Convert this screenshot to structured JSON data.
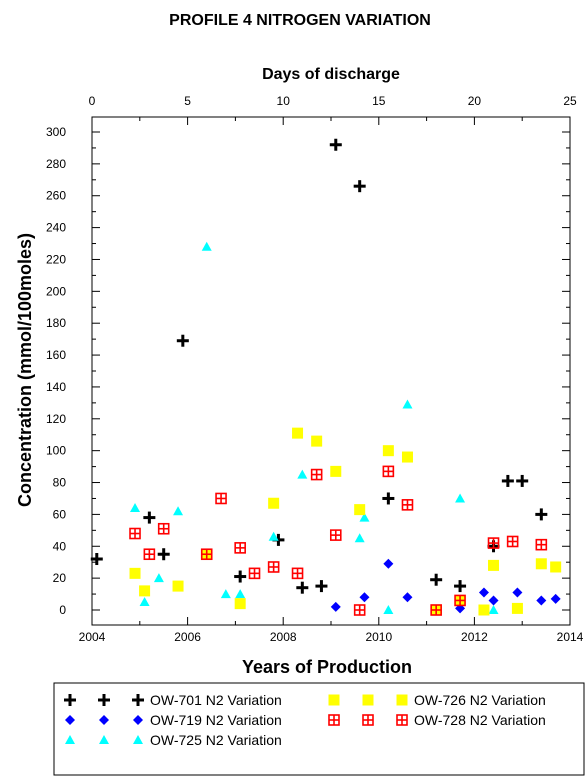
{
  "chart_data": {
    "type": "scatter",
    "title": "PROFILE 4 NITROGEN VARIATION",
    "xlabel": "Years of Production",
    "x2label": "Days of discharge",
    "ylabel": "Concentration (mmol/100moles)",
    "xlim": [
      2004,
      2014
    ],
    "x2lim": [
      0,
      25
    ],
    "ylim": [
      0,
      300
    ],
    "xticks": [
      "2004",
      "2006",
      "2008",
      "2010",
      "2012",
      "2014"
    ],
    "x2ticks": [
      "0",
      "5",
      "10",
      "15",
      "20",
      "25"
    ],
    "yticks": [
      "0",
      "20",
      "40",
      "60",
      "80",
      "100",
      "120",
      "140",
      "160",
      "180",
      "200",
      "220",
      "240",
      "260",
      "280",
      "300"
    ],
    "grid": false,
    "legend_position": "bottom",
    "series": [
      {
        "name": "OW-701 N2 Variation",
        "marker": "cross",
        "color": "#000000",
        "x": [
          2004.1,
          2005.2,
          2005.5,
          2005.9,
          2007.1,
          2007.9,
          2008.4,
          2008.8,
          2009.1,
          2009.6,
          2010.2,
          2011.2,
          2011.7,
          2012.4,
          2012.7,
          2013.0,
          2013.4
        ],
        "y": [
          32,
          58,
          35,
          169,
          21,
          44,
          14,
          15,
          292,
          266,
          70,
          19,
          15,
          40,
          81,
          81,
          60
        ]
      },
      {
        "name": "OW-719 N2 Variation",
        "marker": "diamond",
        "color": "#0000ff",
        "x": [
          2009.1,
          2009.7,
          2010.2,
          2010.6,
          2011.7,
          2012.2,
          2012.4,
          2012.9,
          2013.4,
          2013.7
        ],
        "y": [
          2,
          8,
          29,
          8,
          1,
          11,
          6,
          11,
          6,
          7
        ]
      },
      {
        "name": "OW-725 N2 Variation",
        "marker": "triangle",
        "color": "#00ffff",
        "x": [
          2004.9,
          2005.1,
          2005.4,
          2005.8,
          2006.4,
          2006.8,
          2007.1,
          2007.8,
          2008.4,
          2009.6,
          2009.7,
          2010.2,
          2010.6,
          2011.7,
          2012.4
        ],
        "y": [
          64,
          5,
          20,
          62,
          228,
          10,
          10,
          46,
          85,
          45,
          58,
          0,
          129,
          70,
          0
        ]
      },
      {
        "name": "OW-726 N2 Variation",
        "marker": "square",
        "color": "#ffff00",
        "x": [
          2004.9,
          2005.1,
          2005.8,
          2006.4,
          2007.1,
          2007.8,
          2008.3,
          2008.7,
          2009.1,
          2009.6,
          2010.2,
          2010.6,
          2011.2,
          2011.7,
          2012.2,
          2012.4,
          2012.9,
          2013.4,
          2013.7
        ],
        "y": [
          23,
          12,
          15,
          35,
          4,
          67,
          111,
          106,
          87,
          63,
          100,
          96,
          0,
          6,
          0,
          28,
          1,
          29,
          27
        ]
      },
      {
        "name": "OW-728 N2 Variation",
        "marker": "boxplus",
        "color": "#ff0000",
        "x": [
          2004.9,
          2005.2,
          2005.5,
          2006.4,
          2006.7,
          2007.1,
          2007.4,
          2007.8,
          2008.3,
          2008.7,
          2009.1,
          2009.6,
          2010.2,
          2010.6,
          2011.2,
          2011.7,
          2012.4,
          2012.8,
          2013.4
        ],
        "y": [
          48,
          35,
          51,
          35,
          70,
          39,
          23,
          27,
          23,
          85,
          47,
          0,
          87,
          66,
          0,
          6,
          42,
          43,
          41
        ]
      }
    ]
  }
}
